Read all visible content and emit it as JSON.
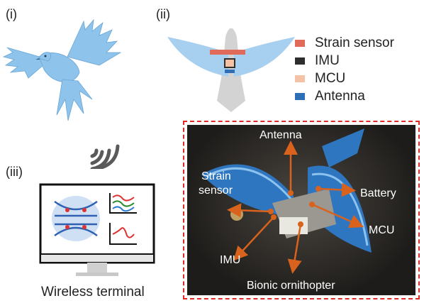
{
  "panels": {
    "i": "(i)",
    "ii": "(ii)",
    "iii": "(iii)"
  },
  "legend": [
    {
      "label": "Strain sensor",
      "color": "#e06b5a"
    },
    {
      "label": "IMU",
      "color": "#2e2e2e"
    },
    {
      "label": "MCU",
      "color": "#f5c2a6"
    },
    {
      "label": "Antenna",
      "color": "#2e6fb7"
    }
  ],
  "photo": {
    "border_color": "#e02a2a",
    "labels": {
      "antenna": "Antenna",
      "strain_sensor_1": "Strain",
      "strain_sensor_2": "sensor",
      "battery": "Battery",
      "mcu": "MCU",
      "imu": "IMU",
      "ornithopter": "Bionic ornithopter"
    },
    "arrow_color": "#d9621c"
  },
  "terminal": {
    "label": "Wireless terminal"
  },
  "colors": {
    "bird_blue": "#8ec3ec",
    "wing_light": "#a7d0f0",
    "body_gray": "#d3d3d3",
    "wifi_gray": "#5a5a5a"
  }
}
